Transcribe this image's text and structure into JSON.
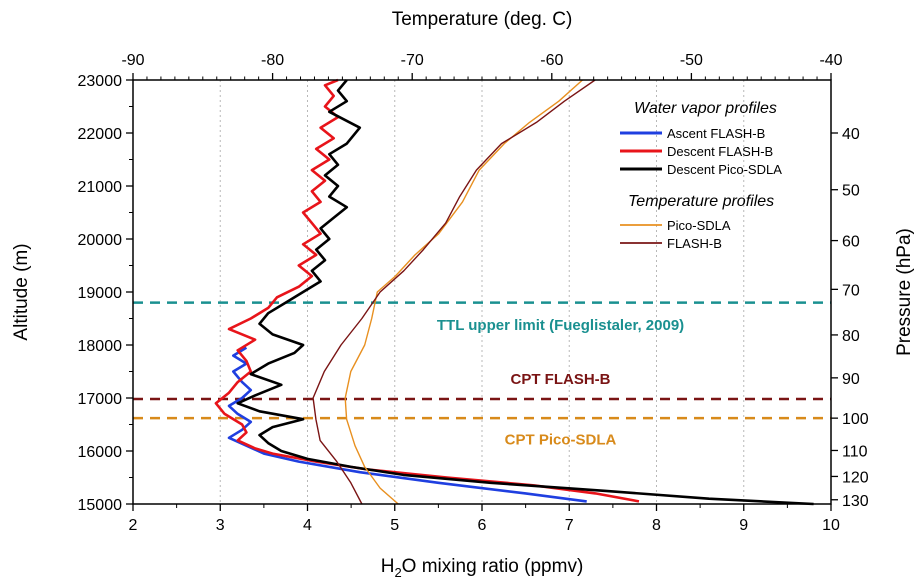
{
  "chart_data": {
    "type": "line",
    "x_bottom": {
      "label_main": "H",
      "label_sub": "2",
      "label_rest": "O mixing ratio (ppmv)",
      "range": [
        2,
        10
      ],
      "ticks": [
        2,
        3,
        4,
        5,
        6,
        7,
        8,
        9,
        10
      ]
    },
    "x_top": {
      "label": "Temperature (deg. C)",
      "range": [
        -90,
        -40
      ],
      "ticks": [
        -90,
        -80,
        -70,
        -60,
        -50,
        -40
      ]
    },
    "y_left": {
      "label": "Altitude (m)",
      "range": [
        15000,
        23000
      ],
      "ticks": [
        15000,
        16000,
        17000,
        18000,
        19000,
        20000,
        21000,
        22000,
        23000
      ]
    },
    "y_right": {
      "label": "Pressure (hPa)",
      "ticks": [
        {
          "value": 40,
          "alt": 22000
        },
        {
          "value": 50,
          "alt": 20930
        },
        {
          "value": 60,
          "alt": 19970
        },
        {
          "value": 70,
          "alt": 19050
        },
        {
          "value": 80,
          "alt": 18190
        },
        {
          "value": 90,
          "alt": 17380
        },
        {
          "value": 100,
          "alt": 16620
        },
        {
          "value": 110,
          "alt": 16010
        },
        {
          "value": 120,
          "alt": 15520
        },
        {
          "value": 130,
          "alt": 15080
        }
      ]
    },
    "grid": "vertical-dotted",
    "legend": {
      "heading_wv": "Water vapor profiles",
      "heading_t": "Temperature profiles",
      "placement": "top-right"
    },
    "series": [
      {
        "name": "Ascent FLASH-B",
        "axis": "h2o",
        "color": "#1f3fe0",
        "points": [
          [
            7.2,
            15050
          ],
          [
            6.5,
            15200
          ],
          [
            5.5,
            15400
          ],
          [
            4.6,
            15600
          ],
          [
            3.9,
            15800
          ],
          [
            3.5,
            15950
          ],
          [
            3.3,
            16100
          ],
          [
            3.1,
            16250
          ],
          [
            3.25,
            16400
          ],
          [
            3.35,
            16550
          ],
          [
            3.2,
            16700
          ],
          [
            3.1,
            16850
          ],
          [
            3.25,
            17000
          ],
          [
            3.35,
            17150
          ],
          [
            3.25,
            17300
          ],
          [
            3.15,
            17500
          ],
          [
            3.3,
            17650
          ],
          [
            3.15,
            17800
          ],
          [
            3.3,
            17950
          ]
        ]
      },
      {
        "name": "Descent FLASH-B",
        "axis": "h2o",
        "color": "#e8141a",
        "points": [
          [
            7.8,
            15050
          ],
          [
            7.3,
            15200
          ],
          [
            6.6,
            15350
          ],
          [
            5.6,
            15500
          ],
          [
            4.7,
            15650
          ],
          [
            4.1,
            15800
          ],
          [
            3.6,
            15950
          ],
          [
            3.4,
            16050
          ],
          [
            3.2,
            16200
          ],
          [
            3.3,
            16350
          ],
          [
            3.25,
            16500
          ],
          [
            3.05,
            16700
          ],
          [
            2.95,
            16900
          ],
          [
            3.1,
            17100
          ],
          [
            3.2,
            17300
          ],
          [
            3.35,
            17500
          ],
          [
            3.3,
            17700
          ],
          [
            3.2,
            17900
          ],
          [
            3.4,
            18100
          ],
          [
            3.1,
            18300
          ],
          [
            3.35,
            18500
          ],
          [
            3.55,
            18700
          ],
          [
            3.65,
            18900
          ],
          [
            3.9,
            19100
          ],
          [
            4.05,
            19300
          ],
          [
            3.9,
            19500
          ],
          [
            4.1,
            19700
          ],
          [
            3.95,
            19900
          ],
          [
            4.15,
            20100
          ],
          [
            4.05,
            20300
          ],
          [
            3.95,
            20500
          ],
          [
            4.15,
            20700
          ],
          [
            4.05,
            20900
          ],
          [
            4.2,
            21100
          ],
          [
            4.05,
            21300
          ],
          [
            4.25,
            21500
          ],
          [
            4.1,
            21700
          ],
          [
            4.3,
            21900
          ],
          [
            4.15,
            22100
          ],
          [
            4.35,
            22300
          ],
          [
            4.2,
            22500
          ],
          [
            4.3,
            22700
          ],
          [
            4.2,
            22900
          ],
          [
            4.35,
            23000
          ]
        ]
      },
      {
        "name": "Descent Pico-SDLA",
        "axis": "h2o",
        "color": "#000000",
        "points": [
          [
            9.8,
            15000
          ],
          [
            8.6,
            15100
          ],
          [
            7.4,
            15250
          ],
          [
            6.1,
            15400
          ],
          [
            5.1,
            15550
          ],
          [
            4.5,
            15700
          ],
          [
            4.0,
            15850
          ],
          [
            3.7,
            16000
          ],
          [
            3.55,
            16150
          ],
          [
            3.45,
            16300
          ],
          [
            3.6,
            16450
          ],
          [
            3.95,
            16600
          ],
          [
            3.45,
            16750
          ],
          [
            3.2,
            16900
          ],
          [
            3.4,
            17050
          ],
          [
            3.7,
            17250
          ],
          [
            3.35,
            17450
          ],
          [
            3.55,
            17650
          ],
          [
            3.85,
            17850
          ],
          [
            3.95,
            18000
          ],
          [
            3.6,
            18200
          ],
          [
            3.45,
            18400
          ],
          [
            3.55,
            18600
          ],
          [
            3.75,
            18800
          ],
          [
            3.95,
            19000
          ],
          [
            4.15,
            19200
          ],
          [
            4.05,
            19400
          ],
          [
            4.2,
            19600
          ],
          [
            4.1,
            19800
          ],
          [
            4.25,
            20000
          ],
          [
            4.15,
            20200
          ],
          [
            4.3,
            20400
          ],
          [
            4.45,
            20600
          ],
          [
            4.25,
            20800
          ],
          [
            4.35,
            21000
          ],
          [
            4.2,
            21200
          ],
          [
            4.35,
            21400
          ],
          [
            4.25,
            21600
          ],
          [
            4.45,
            21800
          ],
          [
            4.6,
            22100
          ],
          [
            4.25,
            22400
          ],
          [
            4.45,
            22600
          ],
          [
            4.35,
            22800
          ],
          [
            4.45,
            23000
          ]
        ]
      },
      {
        "name": "Pico-SDLA",
        "axis": "temp",
        "color": "#e89020",
        "points": [
          [
            -71.0,
            15000
          ],
          [
            -72.3,
            15300
          ],
          [
            -73.4,
            15700
          ],
          [
            -74.1,
            16100
          ],
          [
            -74.7,
            16600
          ],
          [
            -74.8,
            17000
          ],
          [
            -74.4,
            17500
          ],
          [
            -73.4,
            18000
          ],
          [
            -72.9,
            18500
          ],
          [
            -72.5,
            19000
          ],
          [
            -71.2,
            19300
          ],
          [
            -69.8,
            19700
          ],
          [
            -68.1,
            20100
          ],
          [
            -66.4,
            20700
          ],
          [
            -65.2,
            21300
          ],
          [
            -63.4,
            21800
          ],
          [
            -61.6,
            22200
          ],
          [
            -59.5,
            22600
          ],
          [
            -57.8,
            23000
          ]
        ]
      },
      {
        "name": "FLASH-B",
        "axis": "temp",
        "color": "#7a1414",
        "points": [
          [
            -73.6,
            15000
          ],
          [
            -74.4,
            15400
          ],
          [
            -75.4,
            15800
          ],
          [
            -76.6,
            16200
          ],
          [
            -76.9,
            16600
          ],
          [
            -77.1,
            17000
          ],
          [
            -76.3,
            17500
          ],
          [
            -75.1,
            18000
          ],
          [
            -73.6,
            18500
          ],
          [
            -72.3,
            19000
          ],
          [
            -70.6,
            19400
          ],
          [
            -69.2,
            19800
          ],
          [
            -67.6,
            20300
          ],
          [
            -66.6,
            20800
          ],
          [
            -65.4,
            21300
          ],
          [
            -63.6,
            21800
          ],
          [
            -61.1,
            22200
          ],
          [
            -59.1,
            22600
          ],
          [
            -56.9,
            23000
          ]
        ]
      }
    ],
    "reference_lines": [
      {
        "altitude": 18800,
        "label": "TTL upper limit (Fueglistaler, 2009)",
        "color": "#1a9090",
        "label_x_h2o": 6.9,
        "label_alt": 18380
      },
      {
        "altitude": 16980,
        "label": "CPT FLASH-B",
        "color": "#7a1414",
        "label_x_h2o": 6.9,
        "label_alt": 17360
      },
      {
        "altitude": 16620,
        "label": "CPT Pico-SDLA",
        "color": "#d88a1a",
        "label_x_h2o": 6.9,
        "label_alt": 16220
      }
    ]
  }
}
